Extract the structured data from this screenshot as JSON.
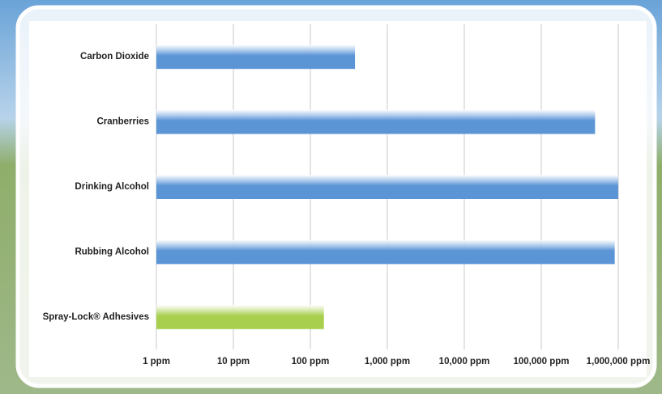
{
  "chart_data": {
    "type": "hbar",
    "categories": [
      "Carbon Dioxide",
      "Cranberries",
      "Drinking Alcohol",
      "Rubbing Alcohol",
      "Spray-Lock® Adhesives"
    ],
    "values": [
      380,
      500000,
      1000000,
      900000,
      150
    ],
    "colors": [
      "#5b95d6",
      "#5b95d6",
      "#5b95d6",
      "#5b95d6",
      "#a9cf4f"
    ],
    "xscale": "log",
    "xlim": [
      1,
      1000000
    ],
    "xticks": [
      {
        "value": 1,
        "label": "1 ppm"
      },
      {
        "value": 10,
        "label": "10 ppm"
      },
      {
        "value": 100,
        "label": "100 ppm"
      },
      {
        "value": 1000,
        "label": "1,000 ppm"
      },
      {
        "value": 10000,
        "label": "10,000 ppm"
      },
      {
        "value": 100000,
        "label": "100,000 ppm"
      },
      {
        "value": 1000000,
        "label": "1,000,000 ppm"
      }
    ],
    "grid": true
  }
}
